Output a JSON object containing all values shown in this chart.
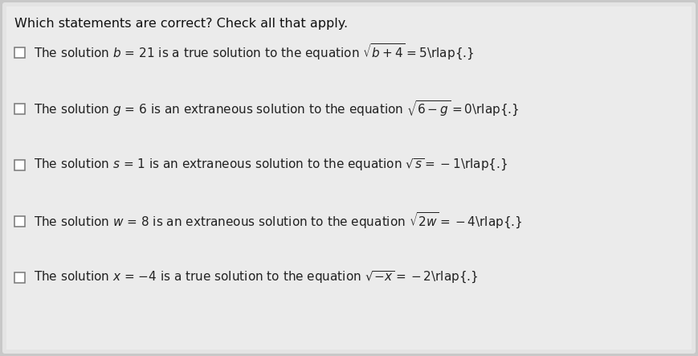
{
  "title": "Which statements are correct? Check all that apply.",
  "background_color": "#c8c8c8",
  "box_color": "#e8e8e8",
  "title_fontsize": 11.5,
  "item_fontsize": 11.0,
  "items": [
    {
      "text_before_math": "The solution $b$ = 21 is a true solution to the equation ",
      "math_label": "$\\sqrt{b+4}=5$\\rlap{.}"
    },
    {
      "text_before_math": "The solution $g$ = 6 is an extraneous solution to the equation ",
      "math_label": "$\\sqrt{6-g}=0$\\rlap{.}"
    },
    {
      "text_before_math": "The solution $s$ = 1 is an extraneous solution to the equation ",
      "math_label": "$\\sqrt{s}=-1$\\rlap{.}"
    },
    {
      "text_before_math": "The solution $w$ = 8 is an extraneous solution to the equation ",
      "math_label": "$\\sqrt{2w}=-4$\\rlap{.}"
    },
    {
      "text_before_math": "The solution $x$ = −4 is a true solution to the equation ",
      "math_label": "$\\sqrt{-x}=-2$\\rlap{.}"
    }
  ],
  "checkbox_edge_color": "#777777",
  "text_color": "#222222",
  "title_color": "#111111"
}
